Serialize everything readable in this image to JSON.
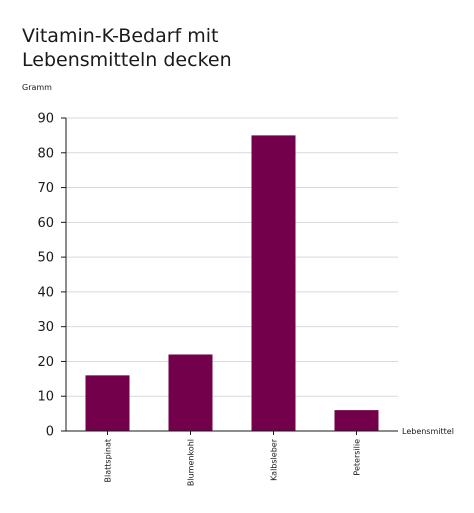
{
  "chart_data": {
    "type": "bar",
    "title_lines": [
      "Vitamin-K-Bedarf mit",
      "Lebensmitteln decken"
    ],
    "ylabel": "Gramm",
    "xlabel": "Lebensmittel",
    "categories": [
      "Blattspinat",
      "Blumenkohl",
      "Kalbsleber",
      "Petersilie"
    ],
    "values": [
      16,
      22,
      85,
      6
    ],
    "ylim": [
      0,
      90
    ],
    "yticks": [
      0,
      10,
      20,
      30,
      40,
      50,
      60,
      70,
      80,
      90
    ],
    "grid": true,
    "bar_color": "#73004a",
    "grid_color": "#d9d9d9",
    "axis_color": "#1a1a1a"
  }
}
